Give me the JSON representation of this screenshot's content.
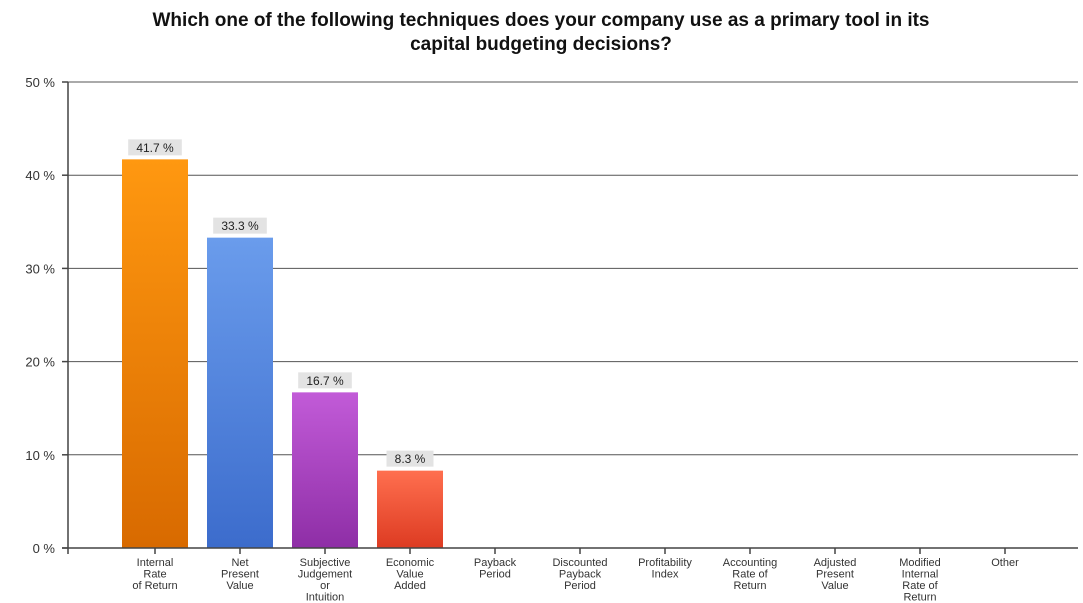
{
  "chart_data": {
    "type": "bar",
    "title": "Which one of the following techniques does your company use as a primary tool in its capital budgeting decisions?",
    "title_lines": [
      "Which one of the following techniques does your company use as a primary tool in its",
      "capital budgeting decisions?"
    ],
    "xlabel": "",
    "ylabel": "",
    "ylim": [
      0,
      50
    ],
    "y_ticks": [
      0,
      10,
      20,
      30,
      40,
      50
    ],
    "y_tick_labels": [
      "0 %",
      "10 %",
      "20 %",
      "30 %",
      "40 %",
      "50 %"
    ],
    "grid": true,
    "legend": "none",
    "categories": [
      {
        "lines": [
          "Internal",
          "Rate",
          "of Return"
        ]
      },
      {
        "lines": [
          "Net",
          "Present",
          "Value"
        ]
      },
      {
        "lines": [
          "Subjective",
          "Judgement",
          "or",
          "Intuition"
        ]
      },
      {
        "lines": [
          "Economic",
          "Value",
          "Added"
        ]
      },
      {
        "lines": [
          "Payback",
          "Period"
        ]
      },
      {
        "lines": [
          "Discounted",
          "Payback",
          "Period"
        ]
      },
      {
        "lines": [
          "Profitability",
          "Index"
        ]
      },
      {
        "lines": [
          "Accounting",
          "Rate of",
          "Return"
        ]
      },
      {
        "lines": [
          "Adjusted",
          "Present",
          "Value"
        ]
      },
      {
        "lines": [
          "Modified",
          "Internal",
          "Rate of",
          "Return"
        ]
      },
      {
        "lines": [
          "Other"
        ]
      }
    ],
    "values": [
      41.7,
      33.3,
      16.7,
      8.3,
      0,
      0,
      0,
      0,
      0,
      0,
      0
    ],
    "value_labels": [
      "41.7 %",
      "33.3 %",
      "16.7 %",
      "8.3 %",
      "",
      "",
      "",
      "",
      "",
      "",
      ""
    ],
    "colors": [
      [
        "#ff9810",
        "#d86a00"
      ],
      [
        "#6a9cec",
        "#3c6ccc"
      ],
      [
        "#c25bd8",
        "#8e2ea6"
      ],
      [
        "#ff6f4f",
        "#dd3b22"
      ],
      null,
      null,
      null,
      null,
      null,
      null,
      null
    ]
  }
}
